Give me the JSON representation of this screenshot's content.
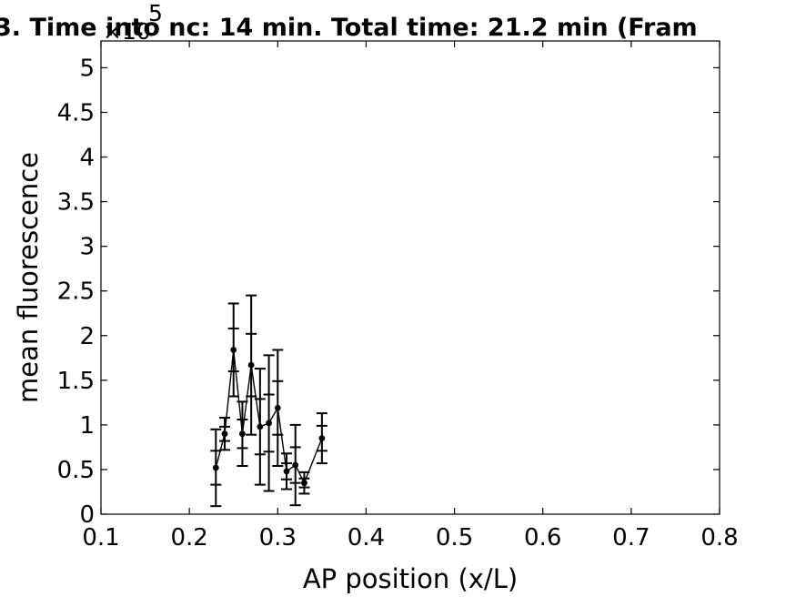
{
  "chart_data": {
    "type": "line",
    "title": "3. Time into nc: 14 min. Total time: 21.2 min (Fram",
    "xlabel": "AP position (x/L)",
    "ylabel": "mean fluorescence",
    "y_exponent": {
      "base": "×10",
      "power": "5"
    },
    "xlim": [
      0.1,
      0.8
    ],
    "ylim": [
      0,
      5.3
    ],
    "x_ticks": [
      0.1,
      0.2,
      0.3,
      0.4,
      0.5,
      0.6,
      0.7,
      0.8
    ],
    "x_tick_labels": [
      "0.1",
      "0.2",
      "0.3",
      "0.4",
      "0.5",
      "0.6",
      "0.7",
      "0.8"
    ],
    "y_ticks": [
      0,
      0.5,
      1,
      1.5,
      2,
      2.5,
      3,
      3.5,
      4,
      4.5,
      5
    ],
    "y_tick_labels": [
      "0",
      "0.5",
      "1",
      "1.5",
      "2",
      "2.5",
      "3",
      "3.5",
      "4",
      "4.5",
      "5"
    ],
    "grid": false,
    "legend": "none",
    "line_color": "#000000",
    "series": [
      {
        "x": [
          0.23,
          0.24,
          0.25,
          0.26,
          0.27,
          0.28,
          0.29,
          0.3,
          0.31,
          0.32,
          0.33,
          0.35
        ],
        "y": [
          0.52,
          0.9,
          1.84,
          0.9,
          1.67,
          0.98,
          1.02,
          1.19,
          0.48,
          0.55,
          0.35,
          0.85
        ],
        "error": [
          0.43,
          0.18,
          0.52,
          0.36,
          0.78,
          0.65,
          0.76,
          0.65,
          0.2,
          0.45,
          0.12,
          0.28
        ],
        "inner_error": [
          0.19,
          0.08,
          0.24,
          0.16,
          0.35,
          0.31,
          0.32,
          0.3,
          0.09,
          0.2,
          0.05,
          0.14
        ]
      }
    ]
  }
}
